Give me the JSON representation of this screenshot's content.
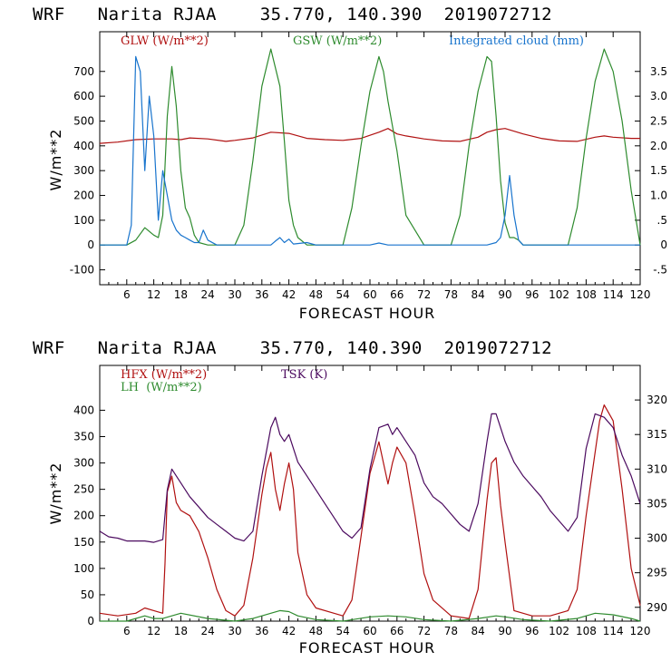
{
  "chart_data": [
    {
      "type": "line",
      "title": "WRF   Narita RJAA    35.770, 140.390  2019072712",
      "xlabel": "FORECAST HOUR",
      "ylabel": "W/m**2",
      "xlim": [
        0,
        120
      ],
      "ylim": [
        -160,
        860
      ],
      "y2lim": [
        -0.8,
        4.3
      ],
      "xticks": [
        6,
        12,
        18,
        24,
        30,
        36,
        42,
        48,
        54,
        60,
        66,
        72,
        78,
        84,
        90,
        96,
        102,
        108,
        114,
        120
      ],
      "yticks": [
        -100,
        0,
        100,
        200,
        300,
        400,
        500,
        600,
        700
      ],
      "y2ticks": [
        -0.5,
        0,
        0.5,
        1.0,
        1.5,
        2.0,
        2.5,
        3.0,
        3.5
      ],
      "y2ticklabels": [
        "-.5",
        "0",
        ".5",
        "1.0",
        "1.5",
        "2.0",
        "2.5",
        "3.0",
        "3.5"
      ],
      "legend_placement": "top",
      "series": [
        {
          "name": "GLW (W/m**2)",
          "color": "#b01010",
          "axis": "left",
          "x": [
            0,
            4,
            8,
            12,
            16,
            18,
            20,
            24,
            28,
            30,
            34,
            38,
            42,
            46,
            50,
            54,
            58,
            62,
            64,
            66,
            68,
            72,
            76,
            80,
            84,
            86,
            88,
            90,
            94,
            98,
            102,
            106,
            110,
            112,
            114,
            118,
            120
          ],
          "y": [
            410,
            415,
            425,
            428,
            428,
            425,
            432,
            428,
            418,
            422,
            432,
            455,
            450,
            430,
            425,
            422,
            430,
            455,
            470,
            448,
            440,
            428,
            420,
            418,
            435,
            455,
            465,
            470,
            448,
            430,
            420,
            418,
            435,
            440,
            435,
            430,
            430
          ]
        },
        {
          "name": "GSW (W/m**2)",
          "color": "#2e8b2e",
          "axis": "left",
          "x": [
            0,
            6,
            8,
            10,
            12,
            13,
            14,
            15,
            16,
            17,
            18,
            19,
            20,
            21,
            22,
            24,
            26,
            30,
            32,
            34,
            36,
            38,
            40,
            41,
            42,
            43,
            44,
            46,
            50,
            54,
            56,
            58,
            60,
            62,
            63,
            64,
            65,
            66,
            68,
            72,
            78,
            80,
            82,
            84,
            86,
            87,
            88,
            89,
            90,
            91,
            92,
            93,
            94,
            96,
            100,
            104,
            106,
            108,
            110,
            112,
            114,
            116,
            118,
            120
          ],
          "y": [
            0,
            0,
            20,
            70,
            40,
            30,
            120,
            520,
            720,
            560,
            300,
            150,
            110,
            40,
            10,
            0,
            0,
            0,
            80,
            340,
            640,
            790,
            640,
            420,
            180,
            80,
            30,
            0,
            0,
            0,
            150,
            400,
            620,
            760,
            700,
            580,
            480,
            380,
            120,
            0,
            0,
            120,
            400,
            620,
            760,
            740,
            520,
            260,
            90,
            30,
            30,
            20,
            0,
            0,
            0,
            0,
            150,
            430,
            660,
            790,
            700,
            500,
            220,
            0
          ]
        },
        {
          "name": "Integrated cloud (mm)",
          "color": "#1874cd",
          "axis": "right",
          "x": [
            0,
            6,
            7,
            8,
            9,
            10,
            11,
            12,
            13,
            14,
            15,
            16,
            17,
            18,
            19,
            20,
            21,
            22,
            23,
            24,
            26,
            38,
            39,
            40,
            41,
            42,
            43,
            46,
            48,
            50,
            60,
            62,
            64,
            66,
            70,
            86,
            88,
            89,
            90,
            91,
            92,
            93,
            94,
            96,
            100,
            120
          ],
          "y": [
            0,
            0,
            0.4,
            3.8,
            3.5,
            1.5,
            3.0,
            2.2,
            0.5,
            1.5,
            1.0,
            0.5,
            0.3,
            0.2,
            0.15,
            0.1,
            0.05,
            0.05,
            0.3,
            0.1,
            0,
            0,
            0.08,
            0.15,
            0.05,
            0.12,
            0.02,
            0.05,
            0,
            0,
            0,
            0.04,
            0,
            0,
            0,
            0,
            0.05,
            0.15,
            0.6,
            1.4,
            0.6,
            0.1,
            0,
            0,
            0,
            0
          ]
        }
      ]
    },
    {
      "type": "line",
      "title": "WRF   Narita RJAA    35.770, 140.390  2019072712",
      "xlabel": "FORECAST HOUR",
      "ylabel": "W/m**2",
      "xlim": [
        0,
        120
      ],
      "ylim": [
        0,
        485
      ],
      "y2lim": [
        288,
        325
      ],
      "xticks": [
        6,
        12,
        18,
        24,
        30,
        36,
        42,
        48,
        54,
        60,
        66,
        72,
        78,
        84,
        90,
        96,
        102,
        108,
        114,
        120
      ],
      "yticks": [
        0,
        50,
        100,
        150,
        200,
        250,
        300,
        350,
        400
      ],
      "y2ticks": [
        290,
        295,
        300,
        305,
        310,
        315,
        320
      ],
      "y2ticklabels": [
        "290",
        "295",
        "300",
        "305",
        "310",
        "315",
        "320"
      ],
      "legend_placement": "top-left",
      "series": [
        {
          "name": "HFX (W/m**2)",
          "color": "#b01010",
          "axis": "left",
          "x": [
            0,
            4,
            8,
            10,
            12,
            14,
            14.5,
            15,
            16,
            17,
            18,
            20,
            22,
            24,
            26,
            28,
            30,
            32,
            34,
            36,
            37,
            38,
            39,
            40,
            41,
            42,
            43,
            44,
            46,
            48,
            52,
            54,
            56,
            58,
            60,
            62,
            63,
            64,
            65,
            66,
            68,
            70,
            72,
            74,
            78,
            82,
            84,
            86,
            87,
            88,
            89,
            90,
            92,
            96,
            100,
            104,
            106,
            108,
            110,
            111,
            112,
            114,
            116,
            118,
            120
          ],
          "y": [
            15,
            10,
            15,
            25,
            20,
            15,
            110,
            245,
            275,
            225,
            210,
            200,
            170,
            120,
            60,
            20,
            10,
            30,
            120,
            240,
            290,
            320,
            250,
            210,
            260,
            300,
            250,
            130,
            50,
            25,
            15,
            10,
            40,
            160,
            280,
            340,
            300,
            260,
            300,
            330,
            300,
            200,
            90,
            40,
            10,
            5,
            60,
            230,
            300,
            310,
            220,
            150,
            20,
            10,
            10,
            20,
            60,
            200,
            320,
            380,
            410,
            380,
            250,
            100,
            30
          ]
        },
        {
          "name": "LH  (W/m**2)",
          "color": "#2e8b2e",
          "axis": "left",
          "x": [
            0,
            6,
            10,
            12,
            14,
            18,
            24,
            30,
            34,
            38,
            40,
            42,
            44,
            48,
            54,
            60,
            64,
            68,
            72,
            78,
            84,
            88,
            90,
            94,
            100,
            106,
            110,
            114,
            118,
            120
          ],
          "y": [
            0,
            0,
            10,
            5,
            5,
            15,
            5,
            0,
            5,
            15,
            20,
            18,
            10,
            3,
            0,
            8,
            10,
            8,
            3,
            0,
            5,
            10,
            8,
            3,
            0,
            5,
            15,
            12,
            5,
            0
          ]
        },
        {
          "name": "TSK (K)",
          "color": "#4b0a5f",
          "axis": "right",
          "x": [
            0,
            2,
            4,
            6,
            8,
            10,
            12,
            14,
            15,
            16,
            18,
            20,
            22,
            24,
            26,
            28,
            30,
            32,
            34,
            36,
            38,
            39,
            40,
            41,
            42,
            44,
            46,
            48,
            50,
            52,
            54,
            56,
            58,
            60,
            62,
            64,
            65,
            66,
            68,
            70,
            72,
            74,
            76,
            78,
            80,
            82,
            84,
            86,
            87,
            88,
            90,
            92,
            94,
            96,
            98,
            100,
            102,
            104,
            106,
            108,
            110,
            112,
            114,
            116,
            118,
            120
          ],
          "y": [
            301,
            300.2,
            300,
            299.6,
            299.6,
            299.6,
            299.4,
            299.8,
            307,
            310,
            308,
            306,
            304.5,
            303,
            302,
            301,
            300,
            299.6,
            301,
            309,
            316,
            317.5,
            315,
            314,
            315,
            311,
            309,
            307,
            305,
            303,
            301,
            300,
            301.5,
            310,
            316,
            316.5,
            315,
            316,
            314,
            312,
            308,
            306,
            305,
            303.5,
            302,
            301,
            305,
            314,
            318,
            318,
            314,
            311,
            309,
            307.5,
            306,
            304,
            302.5,
            301,
            303,
            313,
            318,
            317.5,
            316,
            312,
            309,
            305
          ]
        }
      ]
    }
  ]
}
